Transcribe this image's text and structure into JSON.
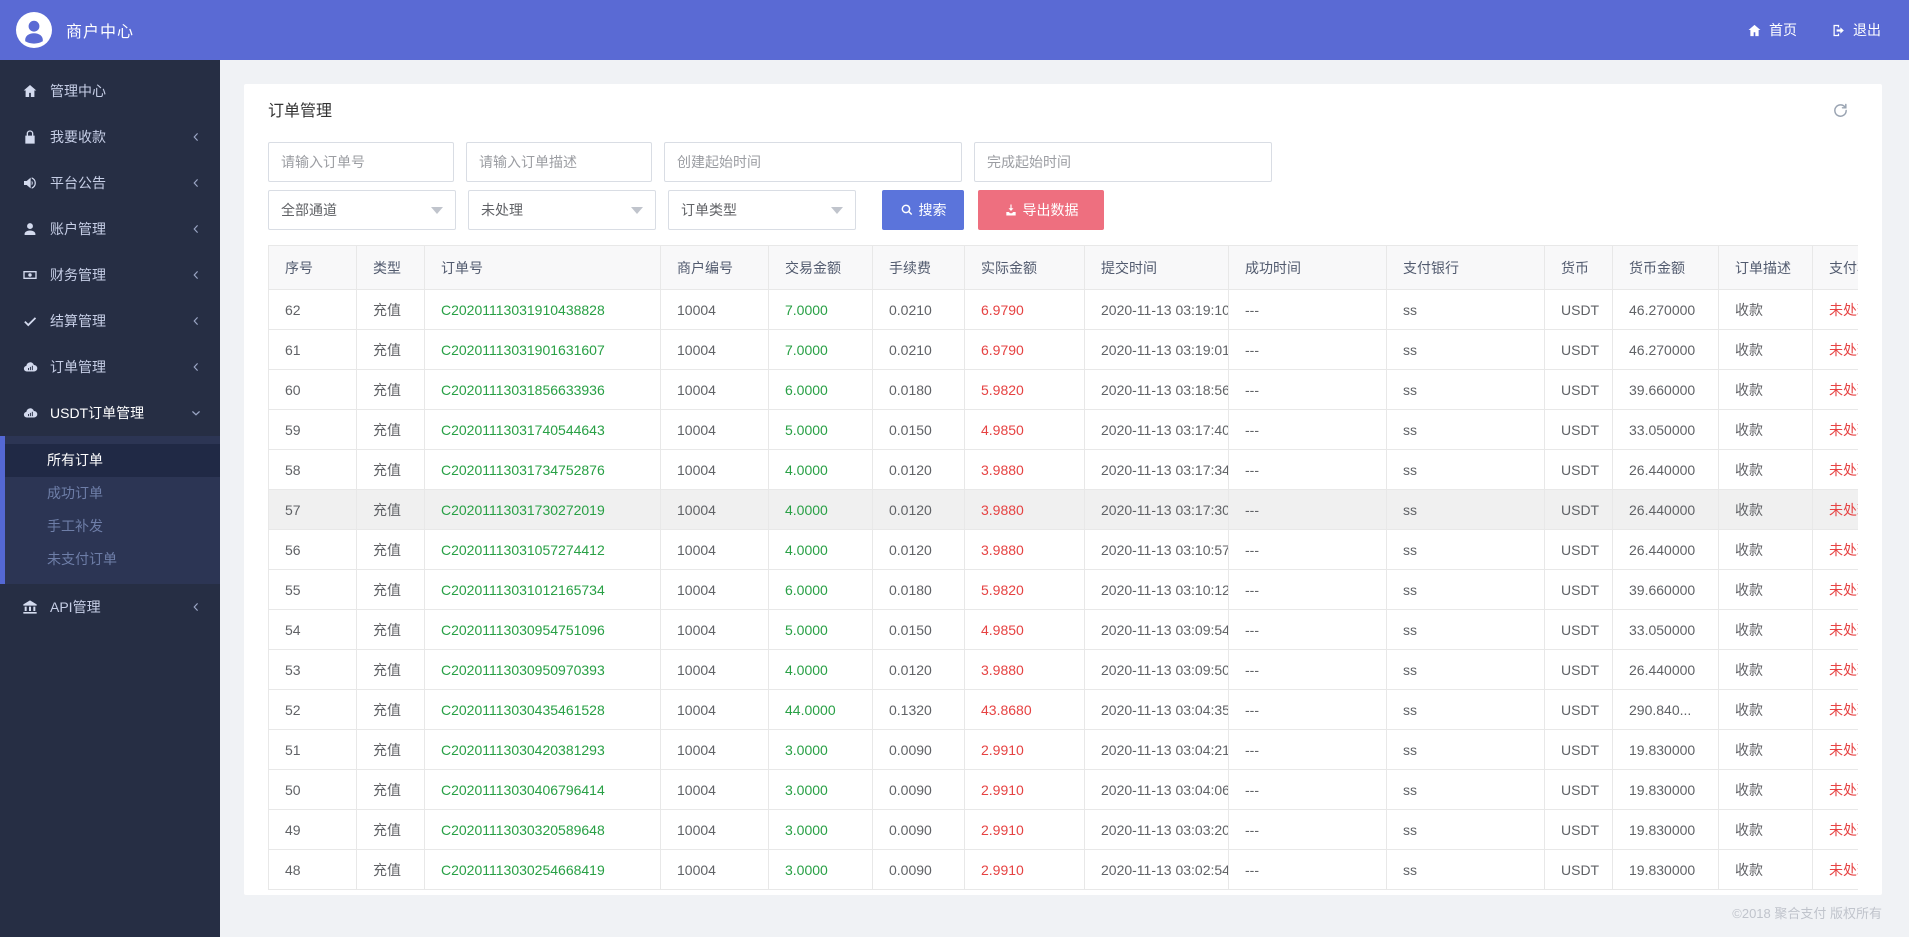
{
  "topbar": {
    "brand": "商户中心",
    "nav": [
      {
        "label": "首页",
        "icon": "home-icon"
      },
      {
        "label": "退出",
        "icon": "logout-icon"
      }
    ]
  },
  "sidebar": {
    "items": [
      {
        "label": "管理中心",
        "icon": "home-icon",
        "chevron": null,
        "active": false
      },
      {
        "label": "我要收款",
        "icon": "lock-icon",
        "chevron": "left",
        "active": false
      },
      {
        "label": "平台公告",
        "icon": "megaphone-icon",
        "chevron": "left",
        "active": false
      },
      {
        "label": "账户管理",
        "icon": "user-icon",
        "chevron": "left",
        "active": false
      },
      {
        "label": "财务管理",
        "icon": "money-icon",
        "chevron": "left",
        "active": false
      },
      {
        "label": "结算管理",
        "icon": "check-icon",
        "chevron": "left",
        "active": false
      },
      {
        "label": "订单管理",
        "icon": "cloud-chart-icon",
        "chevron": "left",
        "active": false
      },
      {
        "label": "USDT订单管理",
        "icon": "cloud-chart-icon",
        "chevron": "down",
        "active": true,
        "submenu": [
          {
            "label": "所有订单",
            "active": true
          },
          {
            "label": "成功订单",
            "active": false
          },
          {
            "label": "手工补发",
            "active": false
          },
          {
            "label": "未支付订单",
            "active": false
          }
        ]
      },
      {
        "label": "API管理",
        "icon": "bank-icon",
        "chevron": "left",
        "active": false
      }
    ]
  },
  "page": {
    "title": "订单管理",
    "filters": {
      "inputs": [
        {
          "placeholder": "请输入订单号"
        },
        {
          "placeholder": "请输入订单描述"
        },
        {
          "placeholder": "创建起始时间"
        },
        {
          "placeholder": "完成起始时间"
        }
      ],
      "selects": [
        {
          "value": "全部通道"
        },
        {
          "value": "未处理"
        },
        {
          "value": "订单类型"
        }
      ],
      "search_label": "搜索",
      "export_label": "导出数据"
    },
    "table": {
      "columns": [
        "序号",
        "类型",
        "订单号",
        "商户编号",
        "交易金额",
        "手续费",
        "实际金额",
        "提交时间",
        "成功时间",
        "支付银行",
        "货币",
        "货币金额",
        "订单描述",
        "支付状态"
      ],
      "rows": [
        {
          "seq": "62",
          "type": "充值",
          "order_no": "C20201113031910438828",
          "merchant": "10004",
          "amount": "7.0000",
          "fee": "0.0210",
          "actual": "6.9790",
          "submit_time": "2020-11-13 03:19:10",
          "success_time": "---",
          "bank": "ss",
          "currency": "USDT",
          "currency_amount": "46.270000",
          "desc": "收款",
          "status": "未处理",
          "highlight": false
        },
        {
          "seq": "61",
          "type": "充值",
          "order_no": "C20201113031901631607",
          "merchant": "10004",
          "amount": "7.0000",
          "fee": "0.0210",
          "actual": "6.9790",
          "submit_time": "2020-11-13 03:19:01",
          "success_time": "---",
          "bank": "ss",
          "currency": "USDT",
          "currency_amount": "46.270000",
          "desc": "收款",
          "status": "未处理",
          "highlight": false
        },
        {
          "seq": "60",
          "type": "充值",
          "order_no": "C20201113031856633936",
          "merchant": "10004",
          "amount": "6.0000",
          "fee": "0.0180",
          "actual": "5.9820",
          "submit_time": "2020-11-13 03:18:56",
          "success_time": "---",
          "bank": "ss",
          "currency": "USDT",
          "currency_amount": "39.660000",
          "desc": "收款",
          "status": "未处理",
          "highlight": false
        },
        {
          "seq": "59",
          "type": "充值",
          "order_no": "C20201113031740544643",
          "merchant": "10004",
          "amount": "5.0000",
          "fee": "0.0150",
          "actual": "4.9850",
          "submit_time": "2020-11-13 03:17:40",
          "success_time": "---",
          "bank": "ss",
          "currency": "USDT",
          "currency_amount": "33.050000",
          "desc": "收款",
          "status": "未处理",
          "highlight": false
        },
        {
          "seq": "58",
          "type": "充值",
          "order_no": "C20201113031734752876",
          "merchant": "10004",
          "amount": "4.0000",
          "fee": "0.0120",
          "actual": "3.9880",
          "submit_time": "2020-11-13 03:17:34",
          "success_time": "---",
          "bank": "ss",
          "currency": "USDT",
          "currency_amount": "26.440000",
          "desc": "收款",
          "status": "未处理",
          "highlight": false
        },
        {
          "seq": "57",
          "type": "充值",
          "order_no": "C20201113031730272019",
          "merchant": "10004",
          "amount": "4.0000",
          "fee": "0.0120",
          "actual": "3.9880",
          "submit_time": "2020-11-13 03:17:30",
          "success_time": "---",
          "bank": "ss",
          "currency": "USDT",
          "currency_amount": "26.440000",
          "desc": "收款",
          "status": "未处理",
          "highlight": true
        },
        {
          "seq": "56",
          "type": "充值",
          "order_no": "C20201113031057274412",
          "merchant": "10004",
          "amount": "4.0000",
          "fee": "0.0120",
          "actual": "3.9880",
          "submit_time": "2020-11-13 03:10:57",
          "success_time": "---",
          "bank": "ss",
          "currency": "USDT",
          "currency_amount": "26.440000",
          "desc": "收款",
          "status": "未处理",
          "highlight": false
        },
        {
          "seq": "55",
          "type": "充值",
          "order_no": "C20201113031012165734",
          "merchant": "10004",
          "amount": "6.0000",
          "fee": "0.0180",
          "actual": "5.9820",
          "submit_time": "2020-11-13 03:10:12",
          "success_time": "---",
          "bank": "ss",
          "currency": "USDT",
          "currency_amount": "39.660000",
          "desc": "收款",
          "status": "未处理",
          "highlight": false
        },
        {
          "seq": "54",
          "type": "充值",
          "order_no": "C20201113030954751096",
          "merchant": "10004",
          "amount": "5.0000",
          "fee": "0.0150",
          "actual": "4.9850",
          "submit_time": "2020-11-13 03:09:54",
          "success_time": "---",
          "bank": "ss",
          "currency": "USDT",
          "currency_amount": "33.050000",
          "desc": "收款",
          "status": "未处理",
          "highlight": false
        },
        {
          "seq": "53",
          "type": "充值",
          "order_no": "C20201113030950970393",
          "merchant": "10004",
          "amount": "4.0000",
          "fee": "0.0120",
          "actual": "3.9880",
          "submit_time": "2020-11-13 03:09:50",
          "success_time": "---",
          "bank": "ss",
          "currency": "USDT",
          "currency_amount": "26.440000",
          "desc": "收款",
          "status": "未处理",
          "highlight": false
        },
        {
          "seq": "52",
          "type": "充值",
          "order_no": "C20201113030435461528",
          "merchant": "10004",
          "amount": "44.0000",
          "fee": "0.1320",
          "actual": "43.8680",
          "submit_time": "2020-11-13 03:04:35",
          "success_time": "---",
          "bank": "ss",
          "currency": "USDT",
          "currency_amount": "290.840...",
          "desc": "收款",
          "status": "未处理",
          "highlight": false
        },
        {
          "seq": "51",
          "type": "充值",
          "order_no": "C20201113030420381293",
          "merchant": "10004",
          "amount": "3.0000",
          "fee": "0.0090",
          "actual": "2.9910",
          "submit_time": "2020-11-13 03:04:21",
          "success_time": "---",
          "bank": "ss",
          "currency": "USDT",
          "currency_amount": "19.830000",
          "desc": "收款",
          "status": "未处理",
          "highlight": false
        },
        {
          "seq": "50",
          "type": "充值",
          "order_no": "C20201113030406796414",
          "merchant": "10004",
          "amount": "3.0000",
          "fee": "0.0090",
          "actual": "2.9910",
          "submit_time": "2020-11-13 03:04:06",
          "success_time": "---",
          "bank": "ss",
          "currency": "USDT",
          "currency_amount": "19.830000",
          "desc": "收款",
          "status": "未处理",
          "highlight": false
        },
        {
          "seq": "49",
          "type": "充值",
          "order_no": "C20201113030320589648",
          "merchant": "10004",
          "amount": "3.0000",
          "fee": "0.0090",
          "actual": "2.9910",
          "submit_time": "2020-11-13 03:03:20",
          "success_time": "---",
          "bank": "ss",
          "currency": "USDT",
          "currency_amount": "19.830000",
          "desc": "收款",
          "status": "未处理",
          "highlight": false
        },
        {
          "seq": "48",
          "type": "充值",
          "order_no": "C20201113030254668419",
          "merchant": "10004",
          "amount": "3.0000",
          "fee": "0.0090",
          "actual": "2.9910",
          "submit_time": "2020-11-13 03:02:54",
          "success_time": "---",
          "bank": "ss",
          "currency": "USDT",
          "currency_amount": "19.830000",
          "desc": "收款",
          "status": "未处理",
          "highlight": false
        }
      ]
    }
  },
  "footer": {
    "copyright": "©2018 聚合支付 版权所有"
  },
  "colors": {
    "topbar": "#5a6ad4",
    "sidebar": "#262e44",
    "submenu_bg": "#2c3554",
    "submenu_bar": "#5468d4",
    "search_button": "#5b74db",
    "export_button": "#ee6f7f",
    "green_text": "#28a045",
    "red_text": "#e64242"
  }
}
